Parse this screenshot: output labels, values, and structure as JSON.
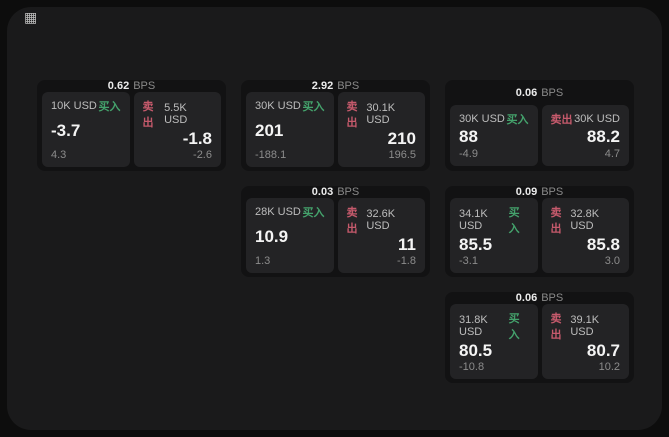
{
  "window": {
    "background": "#0d0d0d",
    "panel_background": "#1a1a1b"
  },
  "colors": {
    "buy_green": "#44a26c",
    "sell_red": "#c65a6c",
    "card_background": "#121213",
    "tile_background": "#232325",
    "primary_text": "#f4f4f4",
    "muted_text": "#8c8c8c",
    "label_text": "#bdbdbd"
  },
  "icons": {
    "grid_glyph": "▦"
  },
  "cards": [
    {
      "bps_value": "0.62",
      "bps_label": "BPS",
      "buy": {
        "size": "10K USD",
        "action": "买入",
        "price": "-3.7",
        "delta": "4.3"
      },
      "sell": {
        "action": "卖出",
        "size": "5.5K USD",
        "price": "-1.8",
        "delta": "-2.6"
      },
      "grid": {
        "row": 0,
        "col": 0
      }
    },
    {
      "bps_value": "2.92",
      "bps_label": "BPS",
      "buy": {
        "size": "30K USD",
        "action": "买入",
        "price": "201",
        "delta": "-188.1"
      },
      "sell": {
        "action": "卖出",
        "size": "30.1K USD",
        "price": "210",
        "delta": "196.5"
      },
      "grid": {
        "row": 0,
        "col": 1
      }
    },
    {
      "bps_value": "0.06",
      "bps_label": "BPS",
      "buy": {
        "size": "30K USD",
        "action": "买入",
        "price": "88",
        "delta": "-4.9"
      },
      "sell": {
        "action": "卖出",
        "size": "30K USD",
        "price": "88.2",
        "delta": "4.7"
      },
      "grid": {
        "row": 0,
        "col": 2
      }
    },
    {
      "bps_value": "0.03",
      "bps_label": "BPS",
      "buy": {
        "size": "28K USD",
        "action": "买入",
        "price": "10.9",
        "delta": "1.3"
      },
      "sell": {
        "action": "卖出",
        "size": "32.6K USD",
        "price": "11",
        "delta": "-1.8"
      },
      "grid": {
        "row": 1,
        "col": 1
      }
    },
    {
      "bps_value": "0.09",
      "bps_label": "BPS",
      "buy": {
        "size": "34.1K USD",
        "action": "买入",
        "price": "85.5",
        "delta": "-3.1"
      },
      "sell": {
        "action": "卖出",
        "size": "32.8K USD",
        "price": "85.8",
        "delta": "3.0"
      },
      "grid": {
        "row": 1,
        "col": 2
      }
    },
    {
      "bps_value": "0.06",
      "bps_label": "BPS",
      "buy": {
        "size": "31.8K USD",
        "action": "买入",
        "price": "80.5",
        "delta": "-10.8"
      },
      "sell": {
        "action": "卖出",
        "size": "39.1K USD",
        "price": "80.7",
        "delta": "10.2"
      },
      "grid": {
        "row": 2,
        "col": 2
      }
    }
  ]
}
